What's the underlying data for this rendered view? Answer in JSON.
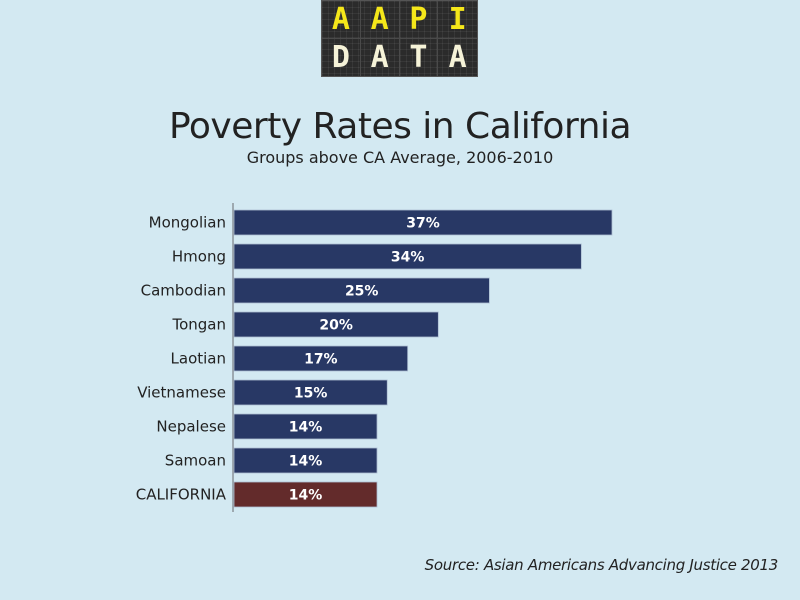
{
  "logo": {
    "top_row": [
      "A",
      "A",
      "P",
      "I"
    ],
    "bottom_row": [
      "D",
      "A",
      "T",
      "A"
    ]
  },
  "colors": {
    "background": "#d3e9f2",
    "bar_default": "#283865",
    "bar_highlight": "#632b2b",
    "logo_top_text": "#f5e71a",
    "logo_bottom_text": "#f6f3d8"
  },
  "chart_data": {
    "type": "bar",
    "orientation": "horizontal",
    "title": "Poverty Rates in California",
    "subtitle": "Groups above CA Average, 2006-2010",
    "categories": [
      "Mongolian",
      "Hmong",
      "Cambodian",
      "Tongan",
      "Laotian",
      "Vietnamese",
      "Nepalese",
      "Samoan",
      "CALIFORNIA"
    ],
    "values": [
      37,
      34,
      25,
      20,
      17,
      15,
      14,
      14,
      14
    ],
    "value_labels": [
      "37%",
      "34%",
      "25%",
      "20%",
      "17%",
      "15%",
      "14%",
      "14%",
      "14%"
    ],
    "highlight": [
      "CALIFORNIA"
    ],
    "unit": "%",
    "xlabel": "",
    "ylabel": "",
    "xlim": [
      0,
      37
    ],
    "grid": false,
    "legend": "none",
    "source": "Source: Asian Americans Advancing Justice 2013"
  }
}
